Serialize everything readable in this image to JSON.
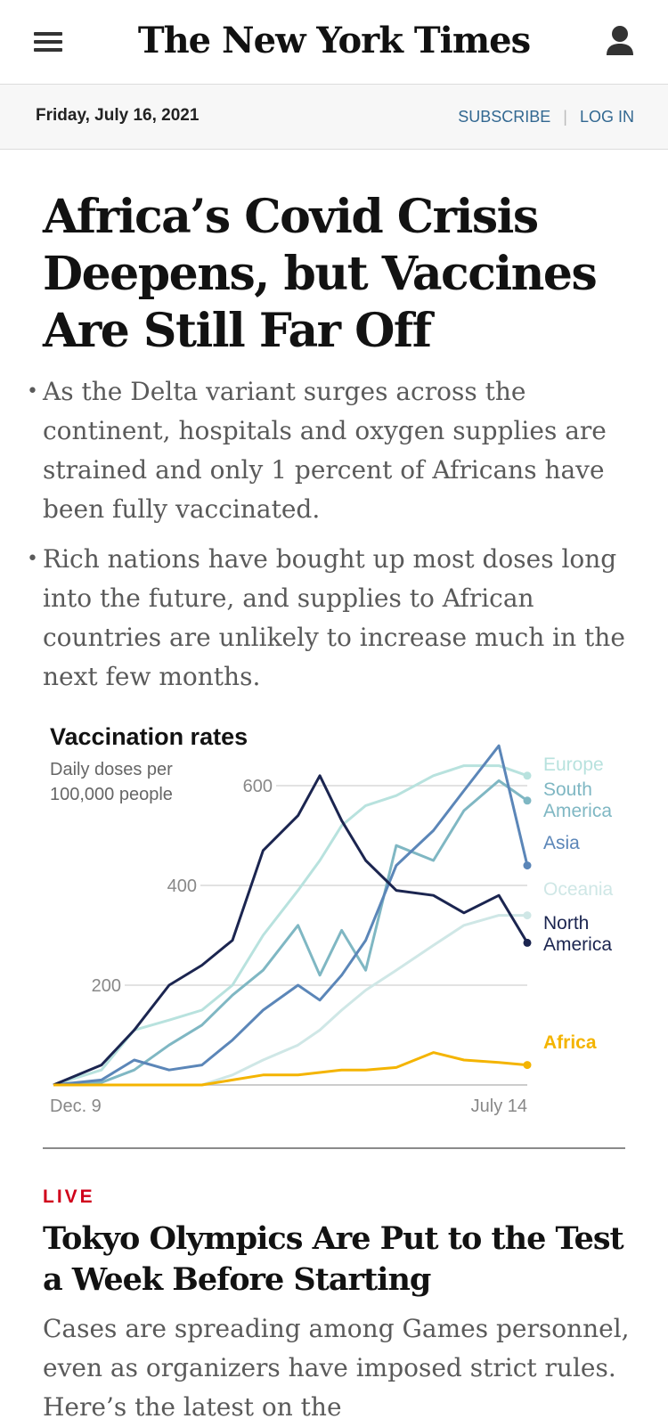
{
  "header": {
    "logo": "The New York Times",
    "menu_icon": "hamburger-menu-icon",
    "user_icon": "user-account-icon"
  },
  "datebar": {
    "date": "Friday, July 16, 2021",
    "subscribe": "SUBSCRIBE",
    "login": "LOG IN",
    "link_color": "#326891"
  },
  "story1": {
    "headline": "Africa’s Covid Crisis Deepens, but Vaccines Are Still Far Off",
    "bullets": [
      "As the Delta variant surges across the continent, hospitals and oxygen supplies are strained and only 1 percent of Africans have been fully vaccinated.",
      "Rich nations have bought up most doses long into the future, and supplies to African countries are unlikely to increase much in the next few months."
    ]
  },
  "chart_data": {
    "type": "line",
    "title": "Vaccination rates",
    "subtitle": "Daily doses per 100,000 people",
    "x_start_label": "Dec. 9",
    "x_end_label": "July 14",
    "x_start": "2020-12-09",
    "x_end": "2021-07-14",
    "ylim": [
      0,
      700
    ],
    "yticks": [
      200,
      400,
      600
    ],
    "grid": true,
    "series": [
      {
        "name": "North America",
        "color": "#1b2550",
        "x": [
          "2020-12-09",
          "2020-12-31",
          "2021-01-15",
          "2021-01-31",
          "2021-02-15",
          "2021-03-01",
          "2021-03-15",
          "2021-03-31",
          "2021-04-10",
          "2021-04-20",
          "2021-05-01",
          "2021-05-15",
          "2021-06-01",
          "2021-06-15",
          "2021-07-01",
          "2021-07-14"
        ],
        "values": [
          0,
          40,
          110,
          200,
          240,
          290,
          470,
          540,
          620,
          530,
          450,
          390,
          380,
          345,
          380,
          285
        ]
      },
      {
        "name": "Europe",
        "color": "#b8e2de",
        "x": [
          "2020-12-09",
          "2020-12-31",
          "2021-01-15",
          "2021-01-31",
          "2021-02-15",
          "2021-03-01",
          "2021-03-15",
          "2021-03-31",
          "2021-04-10",
          "2021-04-20",
          "2021-05-01",
          "2021-05-15",
          "2021-06-01",
          "2021-06-15",
          "2021-07-01",
          "2021-07-14"
        ],
        "values": [
          0,
          30,
          110,
          130,
          150,
          200,
          300,
          390,
          450,
          520,
          560,
          580,
          620,
          640,
          640,
          620
        ]
      },
      {
        "name": "South America",
        "color": "#7fb7c3",
        "x": [
          "2020-12-09",
          "2020-12-31",
          "2021-01-15",
          "2021-01-31",
          "2021-02-15",
          "2021-03-01",
          "2021-03-15",
          "2021-03-31",
          "2021-04-10",
          "2021-04-20",
          "2021-05-01",
          "2021-05-15",
          "2021-06-01",
          "2021-06-15",
          "2021-07-01",
          "2021-07-14"
        ],
        "values": [
          0,
          5,
          30,
          80,
          120,
          180,
          230,
          320,
          220,
          310,
          230,
          480,
          450,
          550,
          610,
          570
        ]
      },
      {
        "name": "Asia",
        "color": "#5b86b8",
        "x": [
          "2020-12-09",
          "2020-12-31",
          "2021-01-15",
          "2021-01-31",
          "2021-02-15",
          "2021-03-01",
          "2021-03-15",
          "2021-03-31",
          "2021-04-10",
          "2021-04-20",
          "2021-05-01",
          "2021-05-15",
          "2021-06-01",
          "2021-06-15",
          "2021-07-01",
          "2021-07-14"
        ],
        "values": [
          0,
          10,
          50,
          30,
          40,
          90,
          150,
          200,
          170,
          220,
          290,
          440,
          510,
          590,
          680,
          440
        ]
      },
      {
        "name": "Oceania",
        "color": "#cfe7e6",
        "x": [
          "2020-12-09",
          "2020-12-31",
          "2021-01-15",
          "2021-01-31",
          "2021-02-15",
          "2021-03-01",
          "2021-03-15",
          "2021-03-31",
          "2021-04-10",
          "2021-04-20",
          "2021-05-01",
          "2021-05-15",
          "2021-06-01",
          "2021-06-15",
          "2021-07-01",
          "2021-07-14"
        ],
        "values": [
          0,
          0,
          0,
          0,
          0,
          20,
          50,
          80,
          110,
          150,
          190,
          230,
          280,
          320,
          340,
          340
        ]
      },
      {
        "name": "Africa",
        "color": "#f4b400",
        "x": [
          "2020-12-09",
          "2020-12-31",
          "2021-01-15",
          "2021-01-31",
          "2021-02-15",
          "2021-03-01",
          "2021-03-15",
          "2021-03-31",
          "2021-04-10",
          "2021-04-20",
          "2021-05-01",
          "2021-05-15",
          "2021-06-01",
          "2021-06-15",
          "2021-07-01",
          "2021-07-14"
        ],
        "values": [
          0,
          0,
          0,
          0,
          0,
          10,
          20,
          20,
          25,
          30,
          30,
          35,
          65,
          50,
          45,
          40
        ]
      }
    ]
  },
  "divider": true,
  "story2": {
    "kicker": "LIVE",
    "kicker_color": "#d0021b",
    "headline": "Tokyo Olympics Are Put to the Test a Week Before Starting",
    "summary": "Cases are spreading among Games personnel, even as organizers have imposed strict rules. Here’s the latest on the"
  }
}
